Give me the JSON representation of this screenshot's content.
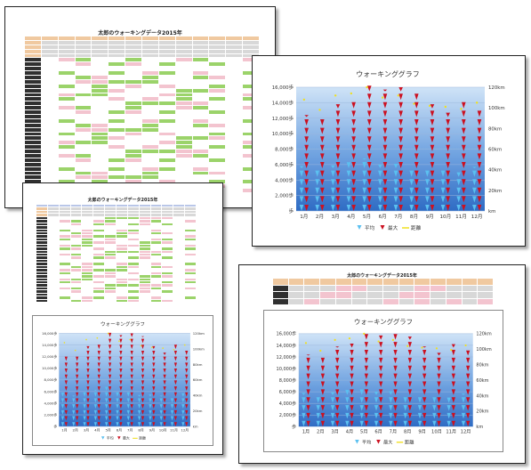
{
  "documents": {
    "sheet1": {
      "title": "太郎のウォーキングデータ2015年"
    },
    "sheet2": {
      "title": "太郎のウォーキングデータ2015年"
    },
    "sheet3": {
      "title": "太郎のウォーキングデータ2015年"
    }
  },
  "chart_data": [
    {
      "type": "bar",
      "title": "ウォーキンググラフ",
      "categories": [
        "1月",
        "2月",
        "3月",
        "4月",
        "5月",
        "6月",
        "7月",
        "8月",
        "9月",
        "10月",
        "11月",
        "12月"
      ],
      "y_left_ticks": [
        "16,000歩",
        "14,000歩",
        "12,000歩",
        "10,000歩",
        "8,000歩",
        "6,000歩",
        "4,000歩",
        "2,000歩",
        "歩"
      ],
      "y_right_ticks": [
        "120km",
        "100km",
        "80km",
        "60km",
        "40km",
        "20km",
        "km"
      ],
      "ylim": [
        0,
        16000
      ],
      "series": [
        {
          "name": "平均",
          "color": "#5bc0f0",
          "values": [
            5800,
            5300,
            5900,
            6300,
            6800,
            6000,
            6100,
            5400,
            5500,
            5300,
            5000,
            5700
          ]
        },
        {
          "name": "最大",
          "color": "#cc1020",
          "values": [
            12400,
            12000,
            13800,
            14300,
            16200,
            15700,
            16000,
            15500,
            13800,
            12700,
            14200,
            13100
          ]
        },
        {
          "name": "距離",
          "color": "#f0e020",
          "values": [
            108,
            98,
            112,
            114,
            120,
            110,
            112,
            104,
            102,
            101,
            99,
            105
          ]
        }
      ],
      "legend": "bottom"
    },
    {
      "type": "bar",
      "title": "ウォーキンググラフ",
      "categories": [
        "1月",
        "2月",
        "3月",
        "4月",
        "5月",
        "6月",
        "7月",
        "8月",
        "9月",
        "10月",
        "11月",
        "12月"
      ],
      "y_left_ticks": [
        "16,000歩",
        "14,000歩",
        "12,000歩",
        "10,000歩",
        "8,000歩",
        "6,000歩",
        "4,000歩",
        "2,000歩",
        "歩"
      ],
      "y_right_ticks": [
        "120km",
        "100km",
        "80km",
        "60km",
        "40km",
        "20km",
        "km"
      ],
      "ylim": [
        0,
        16000
      ],
      "series": [
        {
          "name": "平均",
          "color": "#5bc0f0",
          "values": [
            5800,
            5300,
            5900,
            6300,
            6800,
            6000,
            6100,
            5400,
            5500,
            5300,
            5000,
            5700
          ]
        },
        {
          "name": "最大",
          "color": "#cc1020",
          "values": [
            12400,
            12000,
            13800,
            14300,
            16200,
            15700,
            16000,
            15500,
            13800,
            12700,
            14200,
            13100
          ]
        },
        {
          "name": "距離",
          "color": "#f0e020",
          "values": [
            108,
            98,
            112,
            114,
            120,
            110,
            112,
            104,
            102,
            101,
            99,
            105
          ]
        }
      ],
      "legend": "bottom"
    },
    {
      "type": "bar",
      "title": "ウォーキンググラフ",
      "categories": [
        "1月",
        "2月",
        "3月",
        "4月",
        "5月",
        "6月",
        "7月",
        "8月",
        "9月",
        "10月",
        "11月",
        "12月"
      ],
      "y_left_ticks": [
        "16,000歩",
        "14,000歩",
        "12,000歩",
        "10,000歩",
        "8,000歩",
        "6,000歩",
        "4,000歩",
        "2,000歩",
        "歩"
      ],
      "y_right_ticks": [
        "120km",
        "100km",
        "80km",
        "60km",
        "40km",
        "20km",
        "km"
      ],
      "ylim": [
        0,
        16000
      ],
      "series": [
        {
          "name": "平均",
          "color": "#5bc0f0",
          "values": [
            5800,
            5300,
            5900,
            6300,
            6800,
            6000,
            6100,
            5400,
            5500,
            5300,
            5000,
            5700
          ]
        },
        {
          "name": "最大",
          "color": "#cc1020",
          "values": [
            12400,
            12000,
            13800,
            14300,
            16200,
            15700,
            16000,
            15500,
            13800,
            12700,
            14200,
            13100
          ]
        },
        {
          "name": "距離",
          "color": "#f0e020",
          "values": [
            108,
            98,
            112,
            114,
            120,
            110,
            112,
            104,
            102,
            101,
            99,
            105
          ]
        }
      ],
      "legend": "bottom"
    }
  ]
}
